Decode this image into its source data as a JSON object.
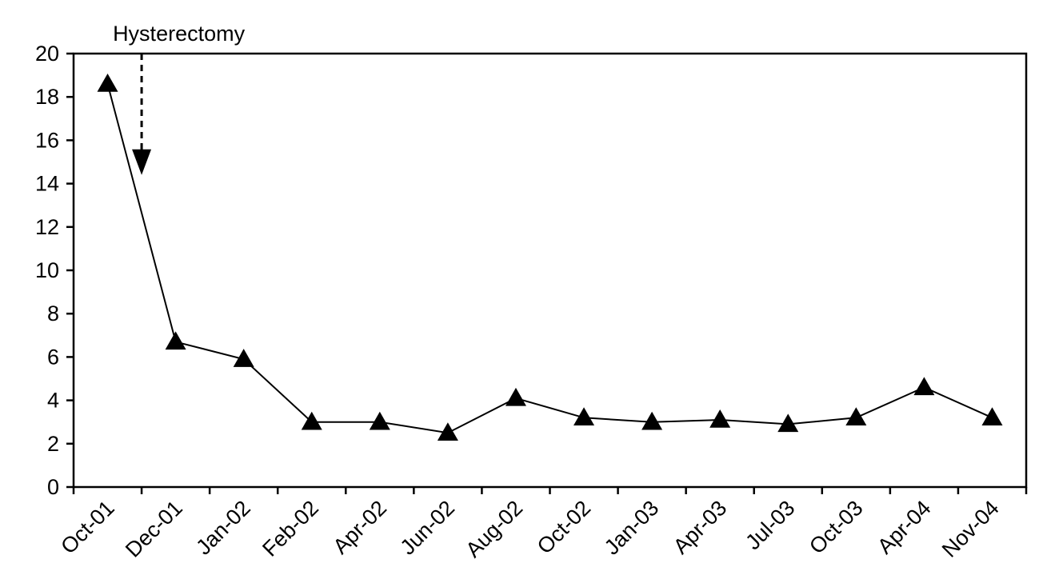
{
  "chart_data": {
    "type": "line",
    "title": "",
    "xlabel": "",
    "ylabel": "",
    "categories": [
      "Oct-01",
      "Dec-01",
      "Jan-02",
      "Feb-02",
      "Apr-02",
      "Jun-02",
      "Aug-02",
      "Oct-02",
      "Jan-03",
      "Apr-03",
      "Jul-03",
      "Oct-03",
      "Apr-04",
      "Nov-04"
    ],
    "series": [
      {
        "values": [
          18.6,
          6.7,
          5.9,
          3.0,
          3.0,
          2.5,
          4.1,
          3.2,
          3.0,
          3.1,
          2.9,
          3.2,
          4.6,
          3.2
        ]
      }
    ],
    "ylim": [
      0,
      20
    ],
    "yticks": [
      0,
      2,
      4,
      6,
      8,
      10,
      12,
      14,
      16,
      18,
      20
    ],
    "marker": "triangle",
    "line_color": "#000000",
    "marker_color": "#000000",
    "grid": false,
    "legend": "none",
    "annotation": {
      "label": "Hysterectomy",
      "x": 0.5,
      "arrow_top_y": 20,
      "arrow_tip_y": 14.4,
      "style": "dashed-arrow"
    }
  }
}
